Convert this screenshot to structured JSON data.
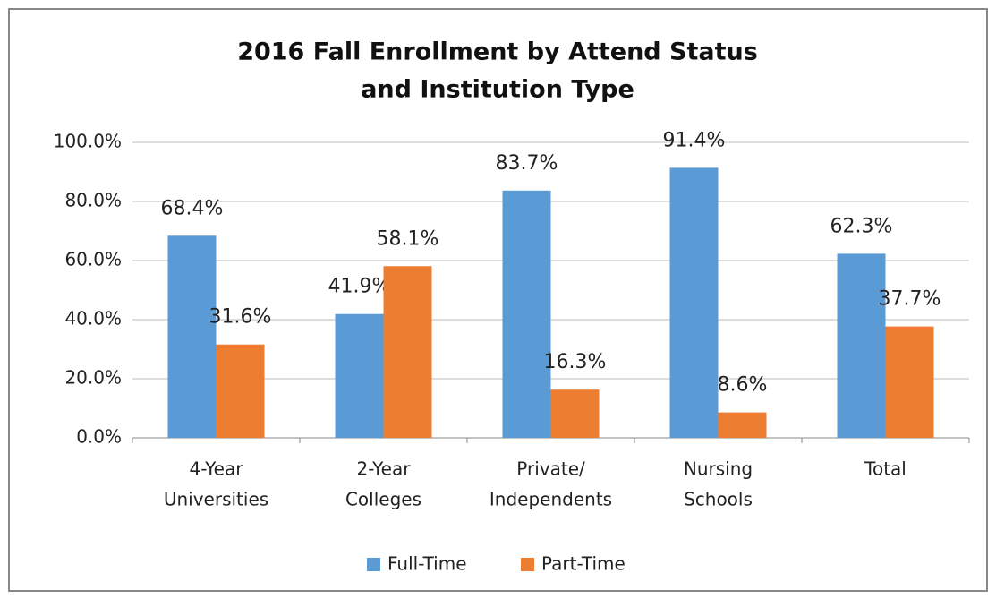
{
  "chart_data": {
    "type": "bar",
    "title": [
      "2016 Fall Enrollment by Attend Status",
      "and Institution Type"
    ],
    "categories": [
      [
        "4-Year",
        "Universities"
      ],
      [
        "2-Year",
        "Colleges"
      ],
      [
        "Private/",
        "Independents"
      ],
      [
        "Nursing",
        "Schools"
      ],
      [
        "Total"
      ]
    ],
    "series": [
      {
        "name": "Full-Time",
        "color": "#5b9bd5",
        "values": [
          68.4,
          41.9,
          83.7,
          91.4,
          62.3
        ],
        "value_labels": [
          "68.4%",
          "41.9%",
          "83.7%",
          "91.4%",
          "62.3%"
        ]
      },
      {
        "name": "Part-Time",
        "color": "#ed7d31",
        "values": [
          31.6,
          58.1,
          16.3,
          8.6,
          37.7
        ],
        "value_labels": [
          "31.6%",
          "58.1%",
          "16.3%",
          "8.6%",
          "37.7%"
        ]
      }
    ],
    "ylim": [
      0,
      100
    ],
    "yticks": [
      {
        "value": 0,
        "label": "0.0%"
      },
      {
        "value": 20,
        "label": "20.0%"
      },
      {
        "value": 40,
        "label": "40.0%"
      },
      {
        "value": 60,
        "label": "60.0%"
      },
      {
        "value": 80,
        "label": "80.0%"
      },
      {
        "value": 100,
        "label": "100.0%"
      }
    ],
    "grid": true,
    "legend": "bottom"
  }
}
